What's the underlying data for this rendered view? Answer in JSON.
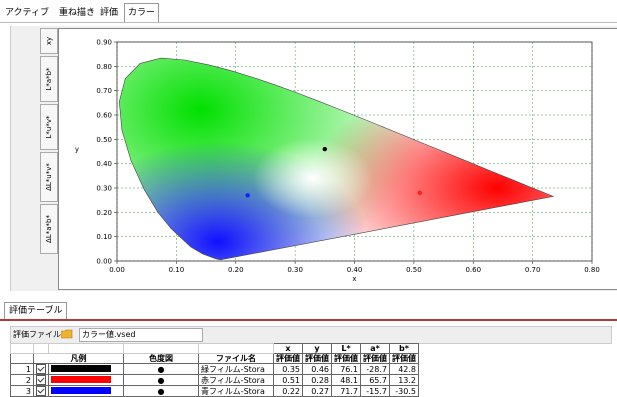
{
  "tabs": [
    {
      "label": "アクティブ"
    },
    {
      "label": "重ね描き"
    },
    {
      "label": "評価"
    },
    {
      "label": "カラー"
    }
  ],
  "view_tabs": [
    {
      "label": "xy"
    },
    {
      "label": "L*a*b*"
    },
    {
      "label": "L*u*v*"
    },
    {
      "label": "ΔL*u*v*"
    },
    {
      "label": "ΔL*a*b*"
    }
  ],
  "chart_data": {
    "type": "scatter",
    "title": "",
    "xlabel": "x",
    "ylabel": "y",
    "xlim": [
      0.0,
      0.8
    ],
    "ylim": [
      0.0,
      0.9
    ],
    "x_ticks": [
      "0.00",
      "0.10",
      "0.20",
      "0.30",
      "0.40",
      "0.50",
      "0.60",
      "0.70",
      "0.80"
    ],
    "y_ticks": [
      "0.00",
      "0.10",
      "0.20",
      "0.30",
      "0.40",
      "0.50",
      "0.60",
      "0.70",
      "0.80",
      "0.90"
    ],
    "grid": true,
    "points": [
      {
        "x": 0.35,
        "y": 0.46,
        "color": "#000000"
      },
      {
        "x": 0.51,
        "y": 0.28,
        "color": "#ff2020"
      },
      {
        "x": 0.22,
        "y": 0.27,
        "color": "#1020ff"
      }
    ]
  },
  "bottom_tab": {
    "label": "評価テーブル"
  },
  "file": {
    "label": "評価ファイル",
    "value": "カラー値.vsed"
  },
  "table": {
    "group_headers": [
      "x",
      "y",
      "L*",
      "a*",
      "b*"
    ],
    "headers": [
      "凡例",
      "色度図",
      "ファイル名",
      "評価値",
      "評価値",
      "評価値",
      "評価値",
      "評価値"
    ],
    "rows": [
      {
        "num": "1",
        "color": "#000000",
        "dot": "●",
        "name": "緑フィルム-Stora",
        "x": "0.35",
        "y": "0.46",
        "L": "76.1",
        "a": "-28.7",
        "b": "42.8"
      },
      {
        "num": "2",
        "color": "#ff0000",
        "dot": "●",
        "name": "赤フィルム-Stora",
        "x": "0.51",
        "y": "0.28",
        "L": "48.1",
        "a": "65.7",
        "b": "13.2"
      },
      {
        "num": "3",
        "color": "#0000ff",
        "dot": "●",
        "name": "青フィルム-Stora",
        "x": "0.22",
        "y": "0.27",
        "L": "71.7",
        "a": "-15.7",
        "b": "-30.5"
      }
    ]
  }
}
